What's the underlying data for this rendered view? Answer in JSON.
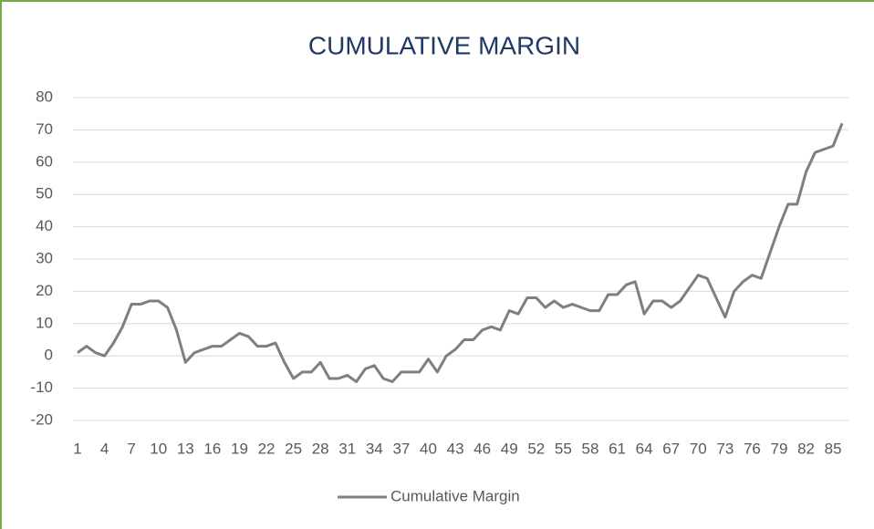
{
  "chart_data": {
    "type": "line",
    "title": "CUMULATIVE MARGIN",
    "categories": [
      1,
      null,
      null,
      4,
      null,
      null,
      7,
      null,
      null,
      10,
      null,
      null,
      13,
      null,
      null,
      16,
      null,
      null,
      19,
      null,
      null,
      22,
      null,
      null,
      25,
      null,
      null,
      28,
      null,
      null,
      31,
      null,
      null,
      34,
      null,
      null,
      37,
      null,
      null,
      40,
      null,
      null,
      43,
      null,
      null,
      46,
      null,
      null,
      49,
      null,
      null,
      52,
      null,
      null,
      55,
      null,
      null,
      58,
      null,
      null,
      61,
      null,
      null,
      64,
      null,
      null,
      67,
      null,
      null,
      70,
      null,
      null,
      73,
      null,
      null,
      76,
      null,
      null,
      79,
      null,
      null,
      82,
      null,
      null,
      85,
      null
    ],
    "series": [
      {
        "name": "Cumulative Margin",
        "color": "#7f7f7f",
        "values": [
          1,
          3,
          1,
          0,
          4,
          9,
          16,
          16,
          17,
          17,
          15,
          8,
          -2,
          1,
          2,
          3,
          3,
          5,
          7,
          6,
          3,
          3,
          4,
          -2,
          -7,
          -5,
          -5,
          -2,
          -7,
          -7,
          -6,
          -8,
          -4,
          -3,
          -7,
          -8,
          -5,
          -5,
          -5,
          -1,
          -5,
          0,
          2,
          5,
          5,
          8,
          9,
          8,
          14,
          13,
          18,
          18,
          15,
          17,
          15,
          16,
          15,
          14,
          14,
          19,
          19,
          22,
          23,
          13,
          17,
          17,
          15,
          17,
          21,
          25,
          24,
          18,
          12,
          20,
          23,
          25,
          24,
          32,
          40,
          47,
          47,
          57,
          63,
          64,
          65,
          72
        ]
      }
    ],
    "ylim": [
      -20,
      80
    ],
    "yticks": [
      -20,
      -10,
      0,
      10,
      20,
      30,
      40,
      50,
      60,
      70,
      80
    ],
    "grid": true,
    "legend": "bottom"
  }
}
